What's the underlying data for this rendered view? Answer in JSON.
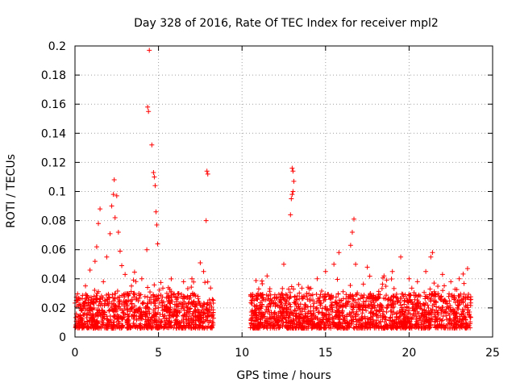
{
  "chart_data": {
    "type": "scatter",
    "title": "Day 328 of 2016, Rate Of TEC Index for receiver mpl2",
    "xlabel": "GPS time / hours",
    "ylabel": "ROTI / TECUs",
    "xlim": [
      0,
      25
    ],
    "ylim": [
      0,
      0.2
    ],
    "x_ticks": [
      0,
      5,
      10,
      15,
      20,
      25
    ],
    "y_ticks": [
      0,
      0.02,
      0.04,
      0.06,
      0.08,
      0.1,
      0.12,
      0.14,
      0.16,
      0.18,
      0.2
    ],
    "x_tick_labels": [
      "0",
      "5",
      "10",
      "15",
      "20",
      "25"
    ],
    "y_tick_labels": [
      "0",
      "0.02",
      "0.04",
      "0.06",
      "0.08",
      "0.1",
      "0.12",
      "0.14",
      "0.16",
      "0.18",
      "0.2"
    ],
    "grid": true,
    "marker": "plus",
    "color": "#ff0000",
    "data_coverage_hours": [
      [
        0,
        8.3
      ],
      [
        10.5,
        23.7
      ]
    ],
    "series": [
      {
        "points": [
          [
            0.1,
            0.021
          ],
          [
            0.3,
            0.015
          ],
          [
            0.6,
            0.024
          ],
          [
            0.9,
            0.046
          ],
          [
            1.2,
            0.052
          ],
          [
            1.3,
            0.062
          ],
          [
            1.4,
            0.078
          ],
          [
            1.5,
            0.088
          ],
          [
            1.7,
            0.038
          ],
          [
            1.9,
            0.055
          ],
          [
            2.1,
            0.071
          ],
          [
            2.2,
            0.09
          ],
          [
            2.3,
            0.098
          ],
          [
            2.35,
            0.108
          ],
          [
            2.4,
            0.082
          ],
          [
            2.5,
            0.097
          ],
          [
            2.6,
            0.072
          ],
          [
            2.7,
            0.059
          ],
          [
            2.8,
            0.049
          ],
          [
            3.0,
            0.043
          ],
          [
            3.5,
            0.03
          ],
          [
            4.0,
            0.04
          ],
          [
            4.3,
            0.06
          ],
          [
            4.35,
            0.158
          ],
          [
            4.4,
            0.155
          ],
          [
            4.45,
            0.197
          ],
          [
            4.6,
            0.132
          ],
          [
            4.7,
            0.113
          ],
          [
            4.75,
            0.11
          ],
          [
            4.8,
            0.104
          ],
          [
            4.85,
            0.086
          ],
          [
            4.9,
            0.077
          ],
          [
            4.95,
            0.064
          ],
          [
            5.5,
            0.03
          ],
          [
            6.5,
            0.038
          ],
          [
            7.0,
            0.04
          ],
          [
            7.5,
            0.051
          ],
          [
            7.7,
            0.045
          ],
          [
            7.9,
            0.114
          ],
          [
            7.95,
            0.112
          ],
          [
            7.85,
            0.08
          ],
          [
            11.0,
            0.033
          ],
          [
            11.5,
            0.042
          ],
          [
            12.5,
            0.05
          ],
          [
            12.9,
            0.084
          ],
          [
            12.95,
            0.095
          ],
          [
            13.0,
            0.098
          ],
          [
            13.05,
            0.1
          ],
          [
            13.0,
            0.116
          ],
          [
            13.05,
            0.114
          ],
          [
            13.1,
            0.107
          ],
          [
            14.5,
            0.04
          ],
          [
            15.0,
            0.045
          ],
          [
            15.5,
            0.05
          ],
          [
            15.8,
            0.058
          ],
          [
            16.5,
            0.063
          ],
          [
            16.6,
            0.072
          ],
          [
            16.7,
            0.081
          ],
          [
            16.8,
            0.05
          ],
          [
            17.5,
            0.048
          ],
          [
            18.5,
            0.042
          ],
          [
            19.0,
            0.045
          ],
          [
            19.5,
            0.055
          ],
          [
            20.0,
            0.04
          ],
          [
            20.5,
            0.038
          ],
          [
            21.0,
            0.045
          ],
          [
            21.3,
            0.055
          ],
          [
            21.4,
            0.058
          ],
          [
            22.0,
            0.043
          ],
          [
            22.5,
            0.038
          ],
          [
            23.0,
            0.04
          ],
          [
            23.5,
            0.047
          ]
        ]
      }
    ]
  }
}
